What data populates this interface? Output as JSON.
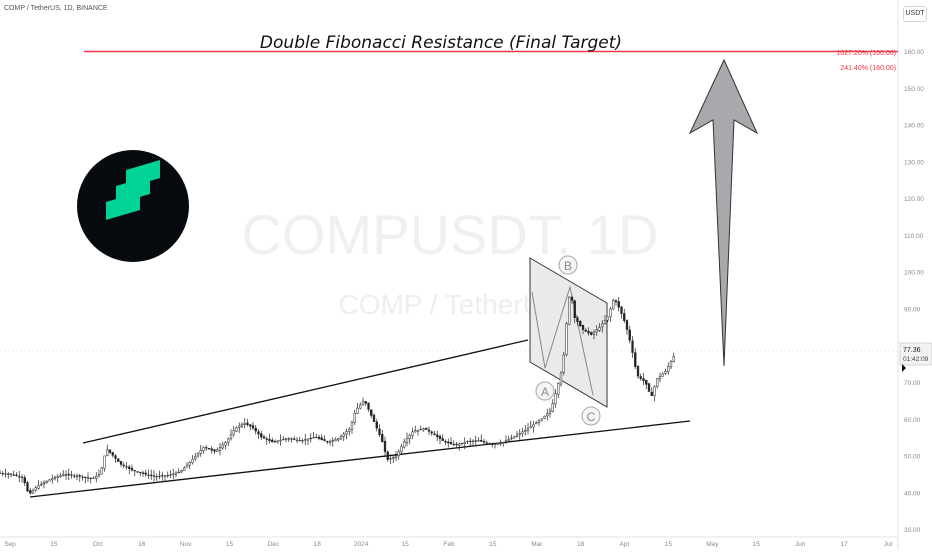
{
  "header": {
    "symbol_line": "COMP / TetherUS, 1D, BINANCE",
    "currency_label": "USDT"
  },
  "watermark": {
    "line1": "COMPUSDT, 1D",
    "line2": "COMP / TetherUS"
  },
  "annotation": {
    "title": "Double Fibonacci Resistance (Final Target)",
    "fib_labels": [
      "1027.20% (160.06)",
      "241.40% (160.00)"
    ],
    "wave_labels": [
      "A",
      "B",
      "C"
    ],
    "target_level": 160
  },
  "price_badge": {
    "price": "77.36",
    "countdown": "01:42:09"
  },
  "colors": {
    "resistance_line": "#f23645",
    "up_candle": "#222222",
    "arrow_fill": "#a7a9ac",
    "logo_bg": "#070a0e",
    "logo_mark": "#00d395",
    "channel_fill": "#e8e8e8"
  },
  "icons": {
    "logo": "compound-logo-icon",
    "arrow": "up-arrow-icon"
  },
  "chart_data": {
    "type": "line",
    "title": "Double Fibonacci Resistance (Final Target)",
    "y_axis": {
      "ticks": [
        30,
        40,
        50,
        60,
        70,
        80,
        90,
        100,
        110,
        120,
        130,
        140,
        150,
        160,
        170
      ],
      "tick_labels": [
        "30.00",
        "40.00",
        "50.00",
        "60.00",
        "70.00",
        "80.00",
        "90.00",
        "100.00",
        "110.00",
        "120.00",
        "130.00",
        "140.00",
        "150.00",
        "160.00",
        "170.00"
      ],
      "range": [
        28,
        174
      ]
    },
    "x_axis": {
      "tick_labels": [
        "Sep",
        "15",
        "Oct",
        "16",
        "Nov",
        "15",
        "Dec",
        "18",
        "2024",
        "15",
        "Feb",
        "15",
        "Mar",
        "18",
        "Apr",
        "15",
        "May",
        "15",
        "Jun",
        "17",
        "Jul"
      ],
      "range": [
        "2023-09-01",
        "2024-07-10"
      ]
    },
    "series": [
      {
        "values": [
          [
            "2023-08-31",
            45.5
          ],
          [
            "2023-09-05",
            45.0
          ],
          [
            "2023-09-09",
            44.2
          ],
          [
            "2023-09-11",
            39.5
          ],
          [
            "2023-09-14",
            41.8
          ],
          [
            "2023-09-18",
            43.5
          ],
          [
            "2023-09-23",
            45.0
          ],
          [
            "2023-09-28",
            44.6
          ],
          [
            "2023-10-03",
            43.8
          ],
          [
            "2023-10-06",
            45.2
          ],
          [
            "2023-10-08",
            52.0
          ],
          [
            "2023-10-10",
            50.5
          ],
          [
            "2023-10-13",
            47.8
          ],
          [
            "2023-10-17",
            46.2
          ],
          [
            "2023-10-21",
            45.2
          ],
          [
            "2023-10-25",
            44.4
          ],
          [
            "2023-10-30",
            44.8
          ],
          [
            "2023-11-03",
            45.8
          ],
          [
            "2023-11-07",
            49.0
          ],
          [
            "2023-11-11",
            52.5
          ],
          [
            "2023-11-15",
            51.2
          ],
          [
            "2023-11-19",
            54.0
          ],
          [
            "2023-11-22",
            57.5
          ],
          [
            "2023-11-25",
            59.0
          ],
          [
            "2023-11-28",
            57.8
          ],
          [
            "2023-12-01",
            55.2
          ],
          [
            "2023-12-05",
            53.8
          ],
          [
            "2023-12-10",
            54.8
          ],
          [
            "2023-12-15",
            54.2
          ],
          [
            "2023-12-20",
            55.2
          ],
          [
            "2023-12-24",
            53.8
          ],
          [
            "2023-12-28",
            54.8
          ],
          [
            "2024-01-01",
            57.5
          ],
          [
            "2024-01-03",
            62.5
          ],
          [
            "2024-01-06",
            65.2
          ],
          [
            "2024-01-09",
            60.0
          ],
          [
            "2024-01-12",
            54.5
          ],
          [
            "2024-01-14",
            49.0
          ],
          [
            "2024-01-17",
            50.0
          ],
          [
            "2024-01-20",
            54.0
          ],
          [
            "2024-01-23",
            56.8
          ],
          [
            "2024-01-27",
            57.5
          ],
          [
            "2024-01-30",
            56.0
          ],
          [
            "2024-02-03",
            53.8
          ],
          [
            "2024-02-07",
            53.0
          ],
          [
            "2024-02-11",
            54.0
          ],
          [
            "2024-02-15",
            54.2
          ],
          [
            "2024-02-19",
            53.2
          ],
          [
            "2024-02-23",
            53.6
          ],
          [
            "2024-02-27",
            55.2
          ],
          [
            "2024-03-02",
            57.0
          ],
          [
            "2024-03-05",
            58.6
          ],
          [
            "2024-03-08",
            60.2
          ],
          [
            "2024-03-11",
            62.5
          ],
          [
            "2024-03-13",
            68.0
          ],
          [
            "2024-03-15",
            74.0
          ],
          [
            "2024-03-16",
            81.0
          ],
          [
            "2024-03-17",
            92.0
          ],
          [
            "2024-03-18",
            95.0
          ],
          [
            "2024-03-19",
            88.0
          ],
          [
            "2024-03-22",
            84.5
          ],
          [
            "2024-03-25",
            83.0
          ],
          [
            "2024-03-28",
            85.0
          ],
          [
            "2024-03-31",
            88.0
          ],
          [
            "2024-04-02",
            93.0
          ],
          [
            "2024-04-04",
            90.0
          ],
          [
            "2024-04-06",
            86.0
          ],
          [
            "2024-04-08",
            80.0
          ],
          [
            "2024-04-10",
            72.0
          ],
          [
            "2024-04-13",
            70.0
          ],
          [
            "2024-04-15",
            66.0
          ],
          [
            "2024-04-17",
            71.0
          ],
          [
            "2024-04-20",
            73.0
          ],
          [
            "2024-04-23",
            77.4
          ]
        ]
      }
    ],
    "horizontal_lines": [
      {
        "y": 160,
        "label": "1027.20% (160.06)"
      }
    ],
    "annotations": [
      "Double Fibonacci Resistance (Final Target)",
      "A",
      "B",
      "C"
    ],
    "grid": false,
    "legend": "none"
  }
}
